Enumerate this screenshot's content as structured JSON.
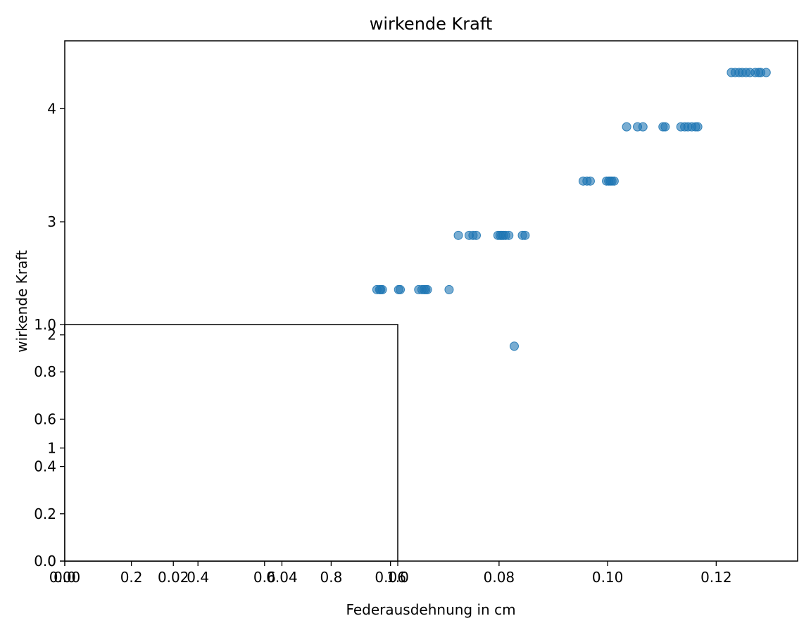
{
  "chart_data": [
    {
      "type": "scatter",
      "title": "wirkende Kraft",
      "xlabel": "Federausdehnung in cm",
      "ylabel": "wirkende Kraft",
      "xlim": [
        0.0,
        0.135
      ],
      "ylim": [
        0.0,
        4.6
      ],
      "x_ticks": [
        "0.00",
        "0.02",
        "0.04",
        "0.06",
        "0.08",
        "0.10",
        "0.12"
      ],
      "y_ticks": [
        "0",
        "1",
        "2",
        "3",
        "4"
      ],
      "grid": false,
      "marker_color": "#1f77b4",
      "marker_alpha": 0.6,
      "points": [
        {
          "x": 0.0575,
          "y": 2.4
        },
        {
          "x": 0.058,
          "y": 2.4
        },
        {
          "x": 0.0582,
          "y": 2.4
        },
        {
          "x": 0.0585,
          "y": 2.4
        },
        {
          "x": 0.0615,
          "y": 2.4
        },
        {
          "x": 0.0618,
          "y": 2.4
        },
        {
          "x": 0.0652,
          "y": 2.4
        },
        {
          "x": 0.0658,
          "y": 2.4
        },
        {
          "x": 0.0662,
          "y": 2.4
        },
        {
          "x": 0.0665,
          "y": 2.4
        },
        {
          "x": 0.0668,
          "y": 2.4
        },
        {
          "x": 0.0708,
          "y": 2.4
        },
        {
          "x": 0.0725,
          "y": 2.88
        },
        {
          "x": 0.0745,
          "y": 2.88
        },
        {
          "x": 0.0752,
          "y": 2.88
        },
        {
          "x": 0.0758,
          "y": 2.88
        },
        {
          "x": 0.0798,
          "y": 2.88
        },
        {
          "x": 0.0802,
          "y": 2.88
        },
        {
          "x": 0.0805,
          "y": 2.88
        },
        {
          "x": 0.0808,
          "y": 2.88
        },
        {
          "x": 0.0812,
          "y": 2.88
        },
        {
          "x": 0.0818,
          "y": 2.88
        },
        {
          "x": 0.0843,
          "y": 2.88
        },
        {
          "x": 0.0848,
          "y": 2.88
        },
        {
          "x": 0.0828,
          "y": 1.9
        },
        {
          "x": 0.0955,
          "y": 3.36
        },
        {
          "x": 0.0962,
          "y": 3.36
        },
        {
          "x": 0.0968,
          "y": 3.36
        },
        {
          "x": 0.0998,
          "y": 3.36
        },
        {
          "x": 0.1002,
          "y": 3.36
        },
        {
          "x": 0.1005,
          "y": 3.36
        },
        {
          "x": 0.1008,
          "y": 3.36
        },
        {
          "x": 0.1012,
          "y": 3.36
        },
        {
          "x": 0.1035,
          "y": 3.84
        },
        {
          "x": 0.1055,
          "y": 3.84
        },
        {
          "x": 0.1065,
          "y": 3.84
        },
        {
          "x": 0.1102,
          "y": 3.84
        },
        {
          "x": 0.1106,
          "y": 3.84
        },
        {
          "x": 0.1135,
          "y": 3.84
        },
        {
          "x": 0.1142,
          "y": 3.84
        },
        {
          "x": 0.1148,
          "y": 3.84
        },
        {
          "x": 0.1155,
          "y": 3.84
        },
        {
          "x": 0.1162,
          "y": 3.84
        },
        {
          "x": 0.1166,
          "y": 3.84
        },
        {
          "x": 0.1228,
          "y": 4.32
        },
        {
          "x": 0.1235,
          "y": 4.32
        },
        {
          "x": 0.1242,
          "y": 4.32
        },
        {
          "x": 0.1248,
          "y": 4.32
        },
        {
          "x": 0.1255,
          "y": 4.32
        },
        {
          "x": 0.1262,
          "y": 4.32
        },
        {
          "x": 0.1272,
          "y": 4.32
        },
        {
          "x": 0.1278,
          "y": 4.32
        },
        {
          "x": 0.1282,
          "y": 4.32
        },
        {
          "x": 0.1292,
          "y": 4.32
        }
      ]
    },
    {
      "type": "table",
      "xlim": [
        0.0,
        1.0
      ],
      "ylim": [
        0.0,
        1.0
      ],
      "x_ticks": [
        "0.0",
        "0.2",
        "0.4",
        "0.6",
        "0.8",
        "1.0"
      ],
      "y_ticks": [
        "0.0",
        "0.2",
        "0.4",
        "0.6",
        "0.8",
        "1.0"
      ],
      "grid": false
    }
  ]
}
